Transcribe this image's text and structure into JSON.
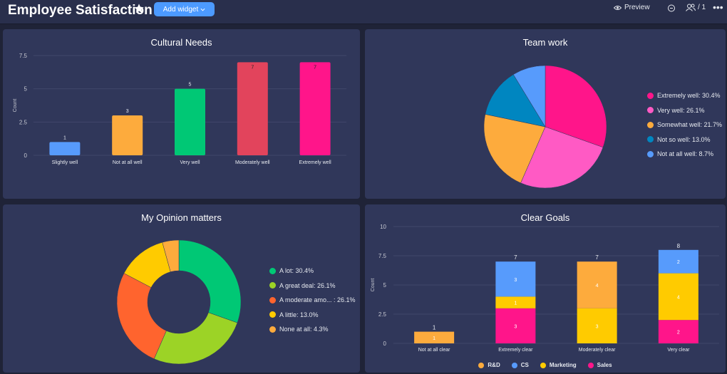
{
  "header": {
    "title": "Employee Satisfaction",
    "star_icon": "star-icon",
    "add_widget_label": "Add widget",
    "preview_label": "Preview",
    "users_label": "/ 1",
    "more_label": "•••"
  },
  "panels": {
    "cultural": {
      "title": "Cultural Needs"
    },
    "teamwork": {
      "title": "Team work"
    },
    "opinion": {
      "title": "My Opinion matters"
    },
    "goals": {
      "title": "Clear Goals"
    }
  },
  "chart_data": [
    {
      "id": "cultural-needs",
      "type": "bar",
      "title": "Cultural Needs",
      "ylabel": "Count",
      "ylim": [
        0,
        7.5
      ],
      "yticks": [
        "0",
        "2.5",
        "5",
        "7.5"
      ],
      "categories": [
        "Slightly well",
        "Not at all well",
        "Very well",
        "Moderately well",
        "Extremely well"
      ],
      "values": [
        1,
        3,
        5,
        7,
        7
      ],
      "colors": [
        "#579bfc",
        "#fdab3d",
        "#00c875",
        "#e2445c",
        "#ff158a"
      ],
      "grid": true
    },
    {
      "id": "team-work",
      "type": "pie",
      "title": "Team work",
      "legend_position": "right",
      "labels": [
        "Extremely well: 30.4%",
        "Very well: 26.1%",
        "Somewhat well: 21.7%",
        "Not so well: 13.0%",
        "Not at all well: 8.7%"
      ],
      "values": [
        30.4,
        26.1,
        21.7,
        13.0,
        8.7
      ],
      "colors": [
        "#ff158a",
        "#ff5ac4",
        "#fdab3d",
        "#0086c0",
        "#579bfc"
      ]
    },
    {
      "id": "my-opinion-matters",
      "type": "pie",
      "donut": true,
      "title": "My Opinion matters",
      "legend_position": "right",
      "labels": [
        "A lot: 30.4%",
        "A great deal: 26.1%",
        "A moderate amo... : 26.1%",
        "A little: 13.0%",
        "None at all: 4.3%"
      ],
      "values": [
        30.4,
        26.1,
        26.1,
        13.0,
        4.3
      ],
      "colors": [
        "#00c875",
        "#9cd326",
        "#ff642e",
        "#ffcb00",
        "#fdab3d"
      ]
    },
    {
      "id": "clear-goals",
      "type": "bar",
      "stacked": true,
      "title": "Clear Goals",
      "ylabel": "Count",
      "ylim": [
        0,
        10
      ],
      "yticks": [
        "0",
        "2.5",
        "5",
        "7.5",
        "10"
      ],
      "categories": [
        "Not at all clear",
        "Extremely clear",
        "Moderately clear",
        "Very clear"
      ],
      "totals": [
        1,
        7,
        7,
        8
      ],
      "series": [
        {
          "name": "Sales",
          "values": [
            0,
            3,
            0,
            2
          ],
          "color": "#ff158a"
        },
        {
          "name": "Marketing",
          "values": [
            0,
            1,
            3,
            4
          ],
          "color": "#ffcb00"
        },
        {
          "name": "R&D",
          "values": [
            1,
            0,
            4,
            0
          ],
          "color": "#fdab3d"
        },
        {
          "name": "CS",
          "values": [
            0,
            3,
            0,
            2
          ],
          "color": "#579bfc"
        }
      ],
      "legend_order": [
        "R&D",
        "CS",
        "Marketing",
        "Sales"
      ],
      "legend_position": "bottom",
      "grid": true
    }
  ]
}
